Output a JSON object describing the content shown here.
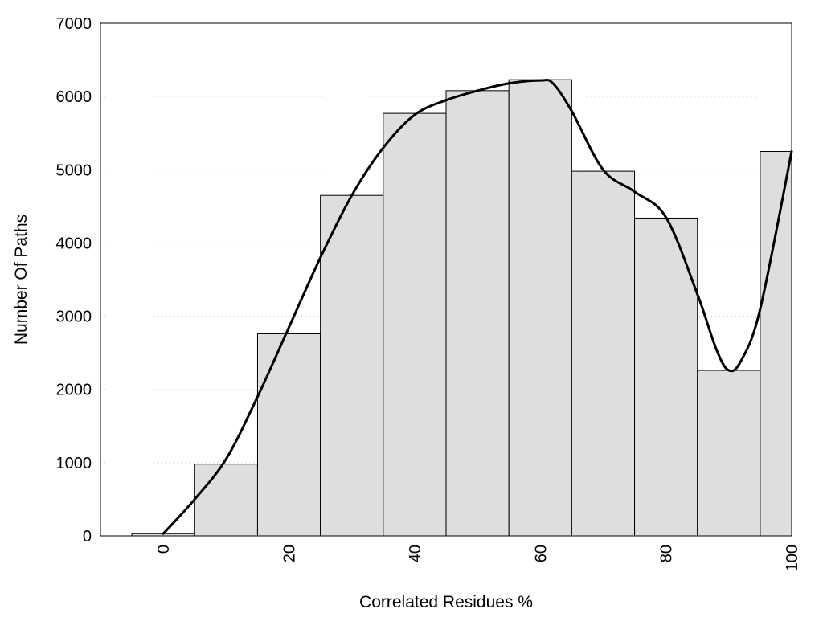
{
  "chart_data": {
    "type": "bar",
    "title": "",
    "xlabel": "Correlated Residues %",
    "ylabel": "Number Of Paths",
    "xlim": [
      -10,
      100
    ],
    "ylim": [
      0,
      7000
    ],
    "grid": "y-dotted",
    "x": [
      0,
      10,
      20,
      30,
      40,
      50,
      60,
      70,
      80,
      90,
      100
    ],
    "values": [
      30,
      980,
      2760,
      4650,
      5770,
      6080,
      6230,
      4980,
      4340,
      2260,
      5250
    ],
    "bar_width": 10,
    "x_ticks": [
      "0",
      "20",
      "40",
      "60",
      "80",
      "100"
    ],
    "x_tick_values": [
      0,
      20,
      40,
      60,
      80,
      100
    ],
    "y_ticks": [
      "0",
      "1000",
      "2000",
      "3000",
      "4000",
      "5000",
      "6000",
      "7000"
    ],
    "y_tick_values": [
      0,
      1000,
      2000,
      3000,
      4000,
      5000,
      6000,
      7000
    ],
    "curve": {
      "type": "line",
      "x": [
        0,
        5,
        10,
        15,
        20,
        25,
        30,
        35,
        40,
        45,
        50,
        55,
        60,
        62,
        65,
        70,
        75,
        80,
        85,
        88,
        90,
        92,
        95,
        100
      ],
      "y": [
        30,
        500,
        1050,
        1900,
        2850,
        3800,
        4650,
        5300,
        5750,
        5950,
        6080,
        6180,
        6220,
        6180,
        5800,
        5000,
        4700,
        4350,
        3300,
        2550,
        2260,
        2400,
        3100,
        5250
      ]
    }
  }
}
